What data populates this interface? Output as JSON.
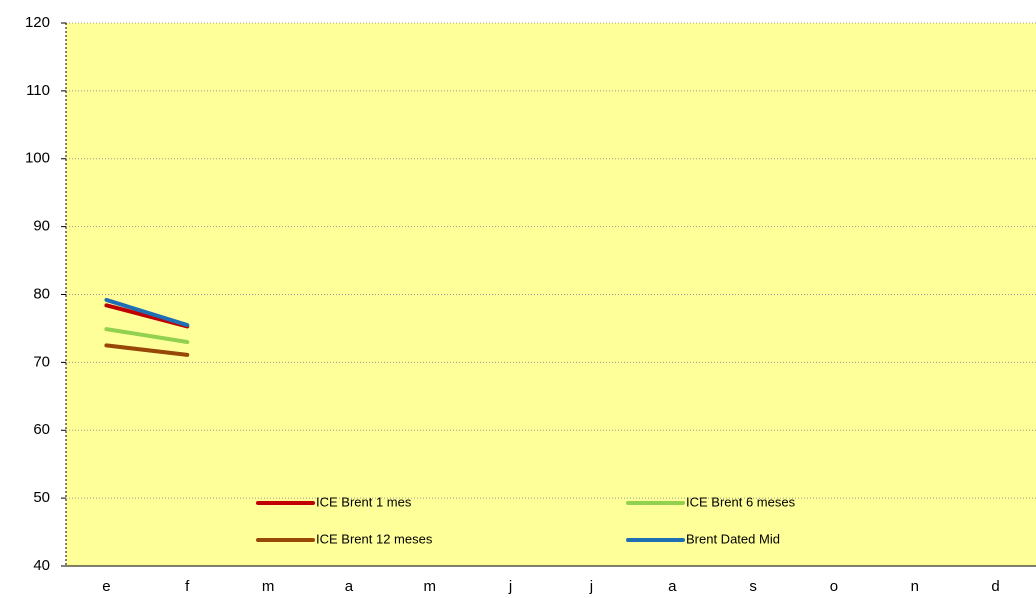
{
  "chart_data": {
    "type": "line",
    "categories": [
      "e",
      "f",
      "m",
      "a",
      "m",
      "j",
      "j",
      "a",
      "s",
      "o",
      "n",
      "d"
    ],
    "series": [
      {
        "name": "ICE Brent 1 mes",
        "color": "#c00000",
        "values": [
          78.4,
          75.3,
          null,
          null,
          null,
          null,
          null,
          null,
          null,
          null,
          null,
          null
        ]
      },
      {
        "name": "ICE Brent 6 meses",
        "color": "#92d050",
        "values": [
          74.9,
          73.0,
          null,
          null,
          null,
          null,
          null,
          null,
          null,
          null,
          null,
          null
        ]
      },
      {
        "name": "ICE Brent 12 meses",
        "color": "#974706",
        "values": [
          72.5,
          71.1,
          null,
          null,
          null,
          null,
          null,
          null,
          null,
          null,
          null,
          null
        ]
      },
      {
        "name": "Brent Dated Mid",
        "color": "#1f6fb4",
        "values": [
          79.2,
          75.5,
          null,
          null,
          null,
          null,
          null,
          null,
          null,
          null,
          null,
          null
        ]
      }
    ],
    "ylim": [
      40,
      120
    ],
    "yticks": [
      40,
      50,
      60,
      70,
      80,
      90,
      100,
      110,
      120
    ],
    "grid": true,
    "background": "#ffff99",
    "legend": "bottom"
  }
}
